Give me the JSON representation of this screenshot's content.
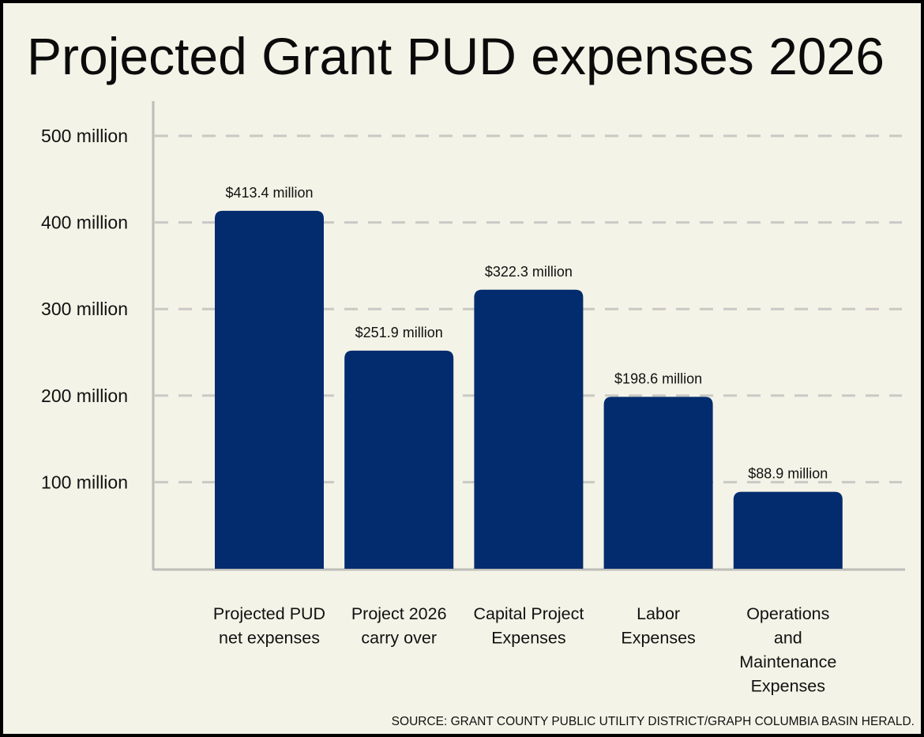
{
  "chart_data": {
    "type": "bar",
    "title": "Projected Grant PUD expenses 2026",
    "categories": [
      [
        "Projected PUD",
        "net expenses"
      ],
      [
        "Project 2026",
        "carry over"
      ],
      [
        "Capital Project",
        "Expenses"
      ],
      [
        "Labor",
        "Expenses"
      ],
      [
        "Operations",
        "and",
        "Maintenance",
        "Expenses"
      ]
    ],
    "values": [
      413.4,
      251.9,
      322.3,
      198.6,
      88.9
    ],
    "data_labels": [
      "$413.4 million",
      "$251.9 million",
      "$322.3 million",
      "$198.6 million",
      "$88.9 million"
    ],
    "unit": "million",
    "ylim": [
      0,
      500
    ],
    "yticks": [
      100,
      200,
      300,
      400,
      500
    ],
    "ytick_labels": [
      "100 million",
      "200 million",
      "300 million",
      "400 million",
      "500 million"
    ],
    "grid": true,
    "legend": "none"
  },
  "source": "SOURCE: GRANT COUNTY PUBLIC UTILITY DISTRICT/GRAPH COLUMBIA BASIN HERALD.",
  "colors": {
    "bar": "#022c6e",
    "background": "#f4f3e7",
    "border": "#000000",
    "grid": "#c9c9c5",
    "axis": "#bdbdb9",
    "text": "#111111"
  }
}
